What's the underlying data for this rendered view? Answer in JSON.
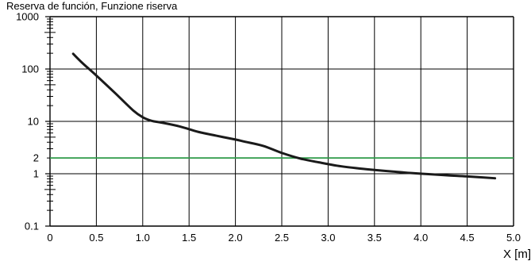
{
  "chart_data": {
    "type": "line",
    "title": "Reserva de función, Funzione riserva",
    "xlabel": "X [m]",
    "ylabel": "",
    "xlim": [
      0,
      5.0
    ],
    "ylim": [
      0.1,
      1000
    ],
    "yscale": "log",
    "grid": true,
    "x_ticks": [
      0,
      0.5,
      1.0,
      1.5,
      2.0,
      2.5,
      3.0,
      3.5,
      4.0,
      4.5,
      5.0
    ],
    "x_tick_labels": [
      "0",
      "0.5",
      "1.0",
      "1.5",
      "2.0",
      "2.5",
      "3.0",
      "3.5",
      "4.0",
      "4.5",
      "5.0"
    ],
    "y_ticks": [
      0.1,
      1,
      2,
      10,
      100,
      1000
    ],
    "y_tick_labels": [
      "0.1",
      "1",
      "2",
      "10",
      "100",
      "1000"
    ],
    "reference_line": {
      "y": 2,
      "color": "#2e9a49"
    },
    "series": [
      {
        "color": "#1a1a1a",
        "x": [
          0.25,
          0.35,
          0.5,
          0.7,
          0.9,
          1.0,
          1.1,
          1.2,
          1.4,
          1.6,
          1.8,
          2.0,
          2.1,
          2.3,
          2.5,
          2.7,
          2.9,
          3.1,
          3.3,
          3.5,
          3.7,
          3.9,
          4.1,
          4.3,
          4.5,
          4.8
        ],
        "y": [
          195,
          130,
          75,
          35,
          16,
          12,
          10.2,
          9.5,
          8.0,
          6.3,
          5.3,
          4.5,
          4.1,
          3.4,
          2.5,
          1.95,
          1.65,
          1.42,
          1.28,
          1.18,
          1.1,
          1.03,
          0.98,
          0.93,
          0.89,
          0.82
        ]
      }
    ]
  }
}
